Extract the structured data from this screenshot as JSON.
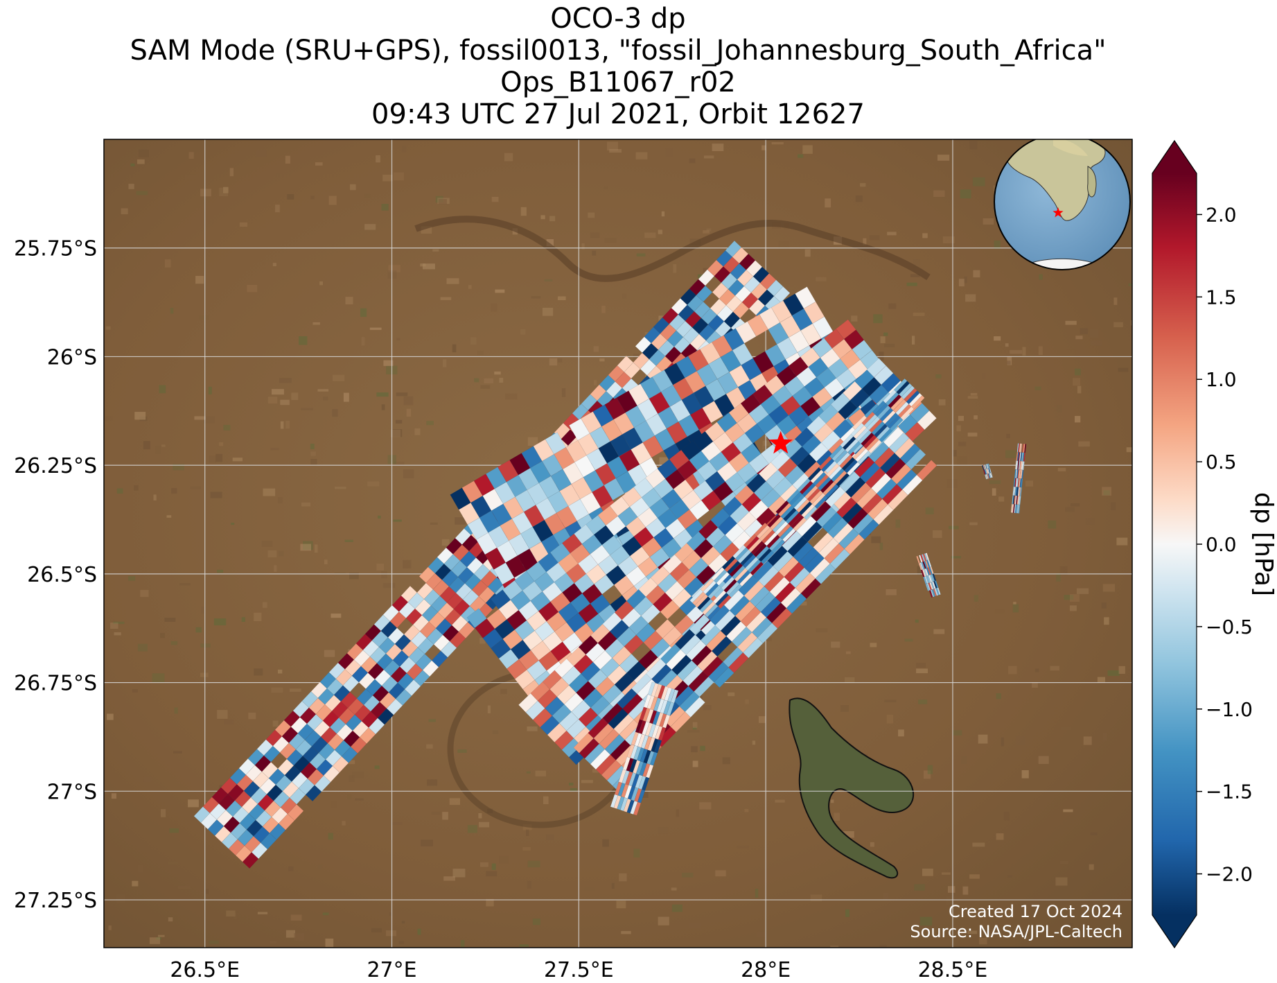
{
  "title": {
    "line1": "OCO-3 dp",
    "line2": "SAM Mode (SRU+GPS), fossil0013, \"fossil_Johannesburg_South_Africa\"",
    "line3": "Ops_B11067_r02",
    "line4": "09:43 UTC 27 Jul 2021, Orbit 12627"
  },
  "colorbar": {
    "label": "dp [hPa]",
    "min": -2.25,
    "max": 2.25,
    "ticks": [
      "2.0",
      "1.5",
      "1.0",
      "0.5",
      "0.0",
      "−0.5",
      "−1.0",
      "−1.5",
      "−2.0"
    ],
    "tick_values": [
      2.0,
      1.5,
      1.0,
      0.5,
      0.0,
      -0.5,
      -1.0,
      -1.5,
      -2.0
    ],
    "colormap": "RdBu_r",
    "extend": "both"
  },
  "credit": {
    "created": "Created 17 Oct 2024",
    "source": "Source: NASA/JPL-Caltech"
  },
  "map": {
    "lon_range": [
      26.23,
      28.98
    ],
    "lat_range": [
      -27.36,
      -25.5
    ],
    "lon_ticks": [
      "26.5°E",
      "27°E",
      "27.5°E",
      "28°E",
      "28.5°E"
    ],
    "lon_tick_values": [
      26.5,
      27.0,
      27.5,
      28.0,
      28.5
    ],
    "lat_ticks": [
      "25.75°S",
      "26°S",
      "26.25°S",
      "26.5°S",
      "26.75°S",
      "27°S",
      "27.25°S"
    ],
    "lat_tick_values": [
      -25.75,
      -26.0,
      -26.25,
      -26.5,
      -26.75,
      -27.0,
      -27.25
    ],
    "target_marker": {
      "lon": 28.04,
      "lat": -26.2,
      "symbol": "star",
      "color": "#ff0000"
    },
    "background": "satellite imagery",
    "inset": "globe showing Africa with target location marked"
  },
  "colors": {
    "land_base": "#8a6540",
    "gridline": "#d8d8d8",
    "marker": "#ff0000"
  }
}
